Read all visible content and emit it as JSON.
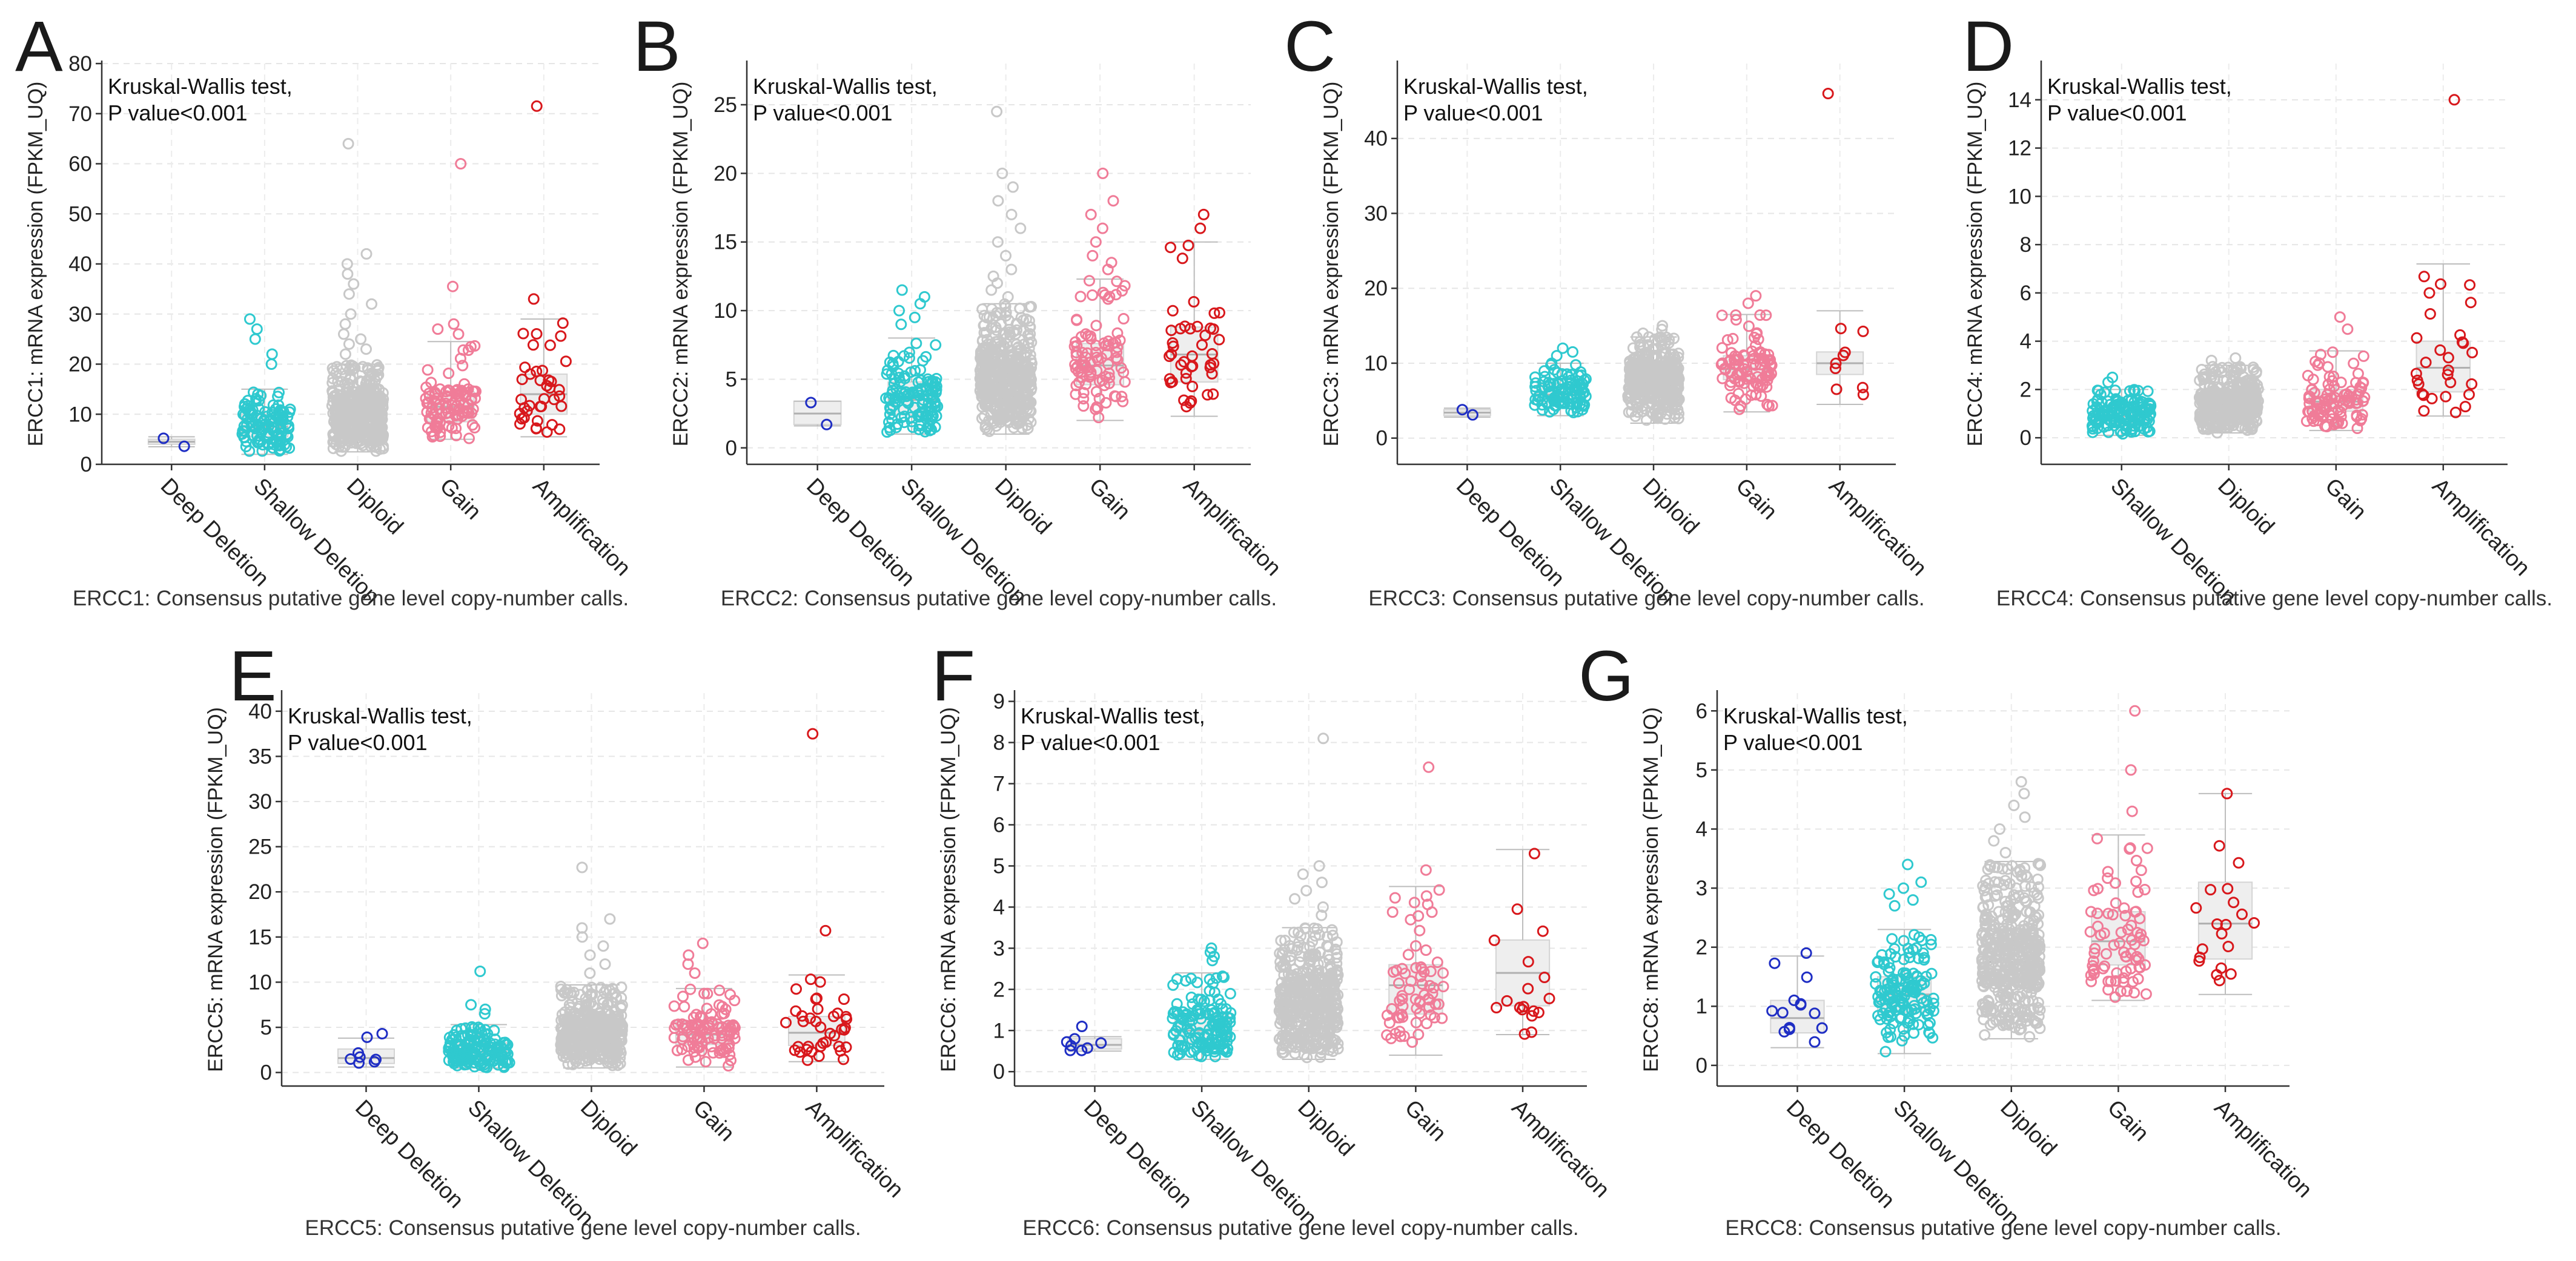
{
  "stats_line1": "Kruskal-Wallis test,",
  "stats_line2": "P value<0.001",
  "chart_data": [
    {
      "type": "boxplot_jitter",
      "letter": "A",
      "gene": "ERCC1",
      "ylabel": "ERCC1: mRNA expression (FPKM_UQ)",
      "xlabel": "ERCC1: Consensus putative gene level copy-number calls.",
      "ylim": [
        0,
        80
      ],
      "yticks": [
        0,
        10,
        20,
        30,
        40,
        50,
        60,
        70,
        80
      ],
      "categories": [
        "Deep Deletion",
        "Shallow Deletion",
        "Diploid",
        "Gain",
        "Amplification"
      ],
      "groups": [
        {
          "color": "#1f2ec4",
          "n": 2,
          "q1": 4,
          "median": 4.5,
          "q3": 5,
          "wlo": 3.5,
          "whi": 5.5,
          "outliers": [
            5.2,
            3.6
          ]
        },
        {
          "color": "#2fc9cf",
          "n": 120,
          "q1": 5.5,
          "median": 7.5,
          "q3": 10,
          "wlo": 2,
          "whi": 15,
          "outliers": [
            29,
            27,
            25,
            22,
            20
          ]
        },
        {
          "color": "#c8c8c8",
          "n": 420,
          "q1": 7.5,
          "median": 10,
          "q3": 13,
          "wlo": 2.5,
          "whi": 20,
          "outliers": [
            64,
            42,
            40,
            38,
            36,
            34,
            32,
            30,
            28,
            26,
            25,
            24,
            23,
            22
          ]
        },
        {
          "color": "#f07c98",
          "n": 100,
          "q1": 8.5,
          "median": 11.5,
          "q3": 14.5,
          "wlo": 5,
          "whi": 24.5,
          "outliers": [
            60,
            35.5,
            28,
            27,
            26
          ]
        },
        {
          "color": "#d8181c",
          "n": 40,
          "q1": 10,
          "median": 14,
          "q3": 18,
          "wlo": 5.5,
          "whi": 29,
          "outliers": [
            71.5,
            33
          ]
        }
      ]
    },
    {
      "type": "boxplot_jitter",
      "letter": "B",
      "gene": "ERCC2",
      "ylabel": "ERCC2: mRNA expression (FPKM_UQ)",
      "xlabel": "ERCC2: Consensus putative gene level copy-number calls.",
      "ylim": [
        -1.2,
        28
      ],
      "yticks": [
        0,
        5,
        10,
        15,
        20,
        25
      ],
      "categories": [
        "Deep Deletion",
        "Shallow Deletion",
        "Diploid",
        "Gain",
        "Amplification"
      ],
      "groups": [
        {
          "color": "#1f2ec4",
          "n": 2,
          "q1": 1.7,
          "median": 2.5,
          "q3": 3.4,
          "wlo": 1.6,
          "whi": 3.4,
          "outliers": [
            3.3,
            1.7
          ]
        },
        {
          "color": "#2fc9cf",
          "n": 130,
          "q1": 2.4,
          "median": 3.5,
          "q3": 4.8,
          "wlo": 1,
          "whi": 8,
          "outliers": [
            11.5,
            11,
            10.5,
            10,
            9.5,
            9
          ]
        },
        {
          "color": "#c8c8c8",
          "n": 460,
          "q1": 3.5,
          "median": 4.8,
          "q3": 6.4,
          "wlo": 1,
          "whi": 10.5,
          "outliers": [
            24.5,
            20,
            19,
            18,
            17,
            16,
            15,
            14,
            13,
            12.5,
            12,
            11.5,
            11
          ]
        },
        {
          "color": "#f07c98",
          "n": 100,
          "q1": 4.6,
          "median": 6,
          "q3": 7.6,
          "wlo": 2,
          "whi": 12.3,
          "outliers": [
            20,
            18,
            17,
            16,
            15,
            14,
            13.5,
            13
          ]
        },
        {
          "color": "#d8181c",
          "n": 45,
          "q1": 4.8,
          "median": 6.8,
          "q3": 8.8,
          "wlo": 2.3,
          "whi": 15,
          "outliers": [
            17,
            16
          ]
        }
      ]
    },
    {
      "type": "boxplot_jitter",
      "letter": "C",
      "gene": "ERCC3",
      "ylabel": "ERCC3: mRNA expression (FPKM_UQ)",
      "xlabel": "ERCC3: Consensus putative gene level copy-number calls.",
      "ylim": [
        -3.5,
        50
      ],
      "yticks": [
        0,
        10,
        20,
        30,
        40
      ],
      "categories": [
        "Deep Deletion",
        "Shallow Deletion",
        "Diploid",
        "Gain",
        "Amplification"
      ],
      "groups": [
        {
          "color": "#1f2ec4",
          "n": 2,
          "q1": 3,
          "median": 3.4,
          "q3": 3.8,
          "wlo": 2.8,
          "whi": 4,
          "outliers": [
            3.8,
            3.1
          ]
        },
        {
          "color": "#2fc9cf",
          "n": 100,
          "q1": 4.8,
          "median": 5.8,
          "q3": 7.2,
          "wlo": 3,
          "whi": 10,
          "outliers": [
            12,
            11.5,
            11
          ]
        },
        {
          "color": "#c8c8c8",
          "n": 440,
          "q1": 6.3,
          "median": 7.7,
          "q3": 9.3,
          "wlo": 2,
          "whi": 13.5,
          "outliers": [
            15,
            14.5,
            14
          ]
        },
        {
          "color": "#f07c98",
          "n": 100,
          "q1": 7.8,
          "median": 9.2,
          "q3": 11,
          "wlo": 3.5,
          "whi": 16.5,
          "outliers": [
            19,
            18
          ]
        },
        {
          "color": "#d8181c",
          "n": 10,
          "q1": 8.5,
          "median": 10,
          "q3": 11.5,
          "wlo": 4.5,
          "whi": 17,
          "outliers": [
            46
          ]
        }
      ]
    },
    {
      "type": "boxplot_jitter",
      "letter": "D",
      "gene": "ERCC4",
      "ylabel": "ERCC4: mRNA expression (FPKM_UQ)",
      "xlabel": "ERCC4: Consensus putative gene level copy-number calls.",
      "ylim": [
        -1.1,
        15.5
      ],
      "yticks": [
        0,
        2,
        4,
        6,
        8,
        10,
        12,
        14
      ],
      "categories": [
        "Shallow Deletion",
        "Diploid",
        "Gain",
        "Amplification"
      ],
      "groups": [
        {
          "color": "#2fc9cf",
          "n": 140,
          "q1": 0.6,
          "median": 0.9,
          "q3": 1.3,
          "wlo": 0.1,
          "whi": 2,
          "outliers": [
            2.5,
            2.3
          ]
        },
        {
          "color": "#c8c8c8",
          "n": 420,
          "q1": 1,
          "median": 1.4,
          "q3": 1.8,
          "wlo": 0.2,
          "whi": 3,
          "outliers": [
            3.3,
            3.2
          ]
        },
        {
          "color": "#f07c98",
          "n": 100,
          "q1": 1.1,
          "median": 1.5,
          "q3": 2,
          "wlo": 0.3,
          "whi": 3.6,
          "outliers": [
            5,
            4.5
          ]
        },
        {
          "color": "#d8181c",
          "n": 30,
          "q1": 1.9,
          "median": 2.9,
          "q3": 4,
          "wlo": 0.9,
          "whi": 7.2,
          "outliers": [
            14,
            6
          ]
        }
      ]
    },
    {
      "type": "boxplot_jitter",
      "letter": "E",
      "gene": "ERCC5",
      "ylabel": "ERCC5: mRNA expression (FPKM_UQ)",
      "xlabel": "ERCC5: Consensus putative gene level copy-number calls.",
      "ylim": [
        -1.5,
        42
      ],
      "yticks": [
        0,
        5,
        10,
        15,
        20,
        25,
        30,
        35,
        40
      ],
      "categories": [
        "Deep Deletion",
        "Shallow Deletion",
        "Diploid",
        "Gain",
        "Amplification"
      ],
      "groups": [
        {
          "color": "#1f2ec4",
          "n": 8,
          "q1": 1,
          "median": 1.6,
          "q3": 2.6,
          "wlo": 0.6,
          "whi": 3.8,
          "outliers": [
            4.3,
            3.9
          ]
        },
        {
          "color": "#2fc9cf",
          "n": 150,
          "q1": 1.6,
          "median": 2.3,
          "q3": 3.3,
          "wlo": 0.5,
          "whi": 5.3,
          "outliers": [
            11.2,
            7.5,
            7,
            6.5
          ]
        },
        {
          "color": "#c8c8c8",
          "n": 420,
          "q1": 3,
          "median": 4.2,
          "q3": 5.8,
          "wlo": 0.5,
          "whi": 9.7,
          "outliers": [
            22.7,
            17,
            16,
            15,
            14,
            13,
            12,
            11
          ]
        },
        {
          "color": "#f07c98",
          "n": 100,
          "q1": 3.1,
          "median": 4.2,
          "q3": 5.6,
          "wlo": 0.6,
          "whi": 9.3,
          "outliers": [
            14.3,
            13,
            12,
            11
          ]
        },
        {
          "color": "#d8181c",
          "n": 40,
          "q1": 3,
          "median": 4.4,
          "q3": 6.2,
          "wlo": 1.2,
          "whi": 10.8,
          "outliers": [
            37.5,
            15.7
          ]
        }
      ]
    },
    {
      "type": "boxplot_jitter",
      "letter": "F",
      "gene": "ERCC6",
      "ylabel": "ERCC6: mRNA expression (FPKM_UQ)",
      "xlabel": "ERCC6: Consensus putative gene level copy-number calls.",
      "ylim": [
        -0.35,
        9.2
      ],
      "yticks": [
        0,
        1,
        2,
        3,
        4,
        5,
        6,
        7,
        8,
        9
      ],
      "categories": [
        "Deep Deletion",
        "Shallow Deletion",
        "Diploid",
        "Gain",
        "Amplification"
      ],
      "groups": [
        {
          "color": "#1f2ec4",
          "n": 8,
          "q1": 0.55,
          "median": 0.65,
          "q3": 0.8,
          "wlo": 0.5,
          "whi": 0.85,
          "outliers": [
            1.1
          ]
        },
        {
          "color": "#2fc9cf",
          "n": 150,
          "q1": 0.7,
          "median": 1,
          "q3": 1.4,
          "wlo": 0.3,
          "whi": 2.4,
          "outliers": [
            3,
            2.9,
            2.8,
            2.7
          ]
        },
        {
          "color": "#c8c8c8",
          "n": 430,
          "q1": 1.2,
          "median": 1.6,
          "q3": 2.2,
          "wlo": 0.3,
          "whi": 3.5,
          "outliers": [
            8.1,
            5,
            4.8,
            4.6,
            4.4,
            4.2,
            4,
            3.8
          ]
        },
        {
          "color": "#f07c98",
          "n": 70,
          "q1": 1.4,
          "median": 2.1,
          "q3": 2.6,
          "wlo": 0.4,
          "whi": 4.5,
          "outliers": [
            7.4,
            4.9
          ]
        },
        {
          "color": "#d8181c",
          "n": 18,
          "q1": 1.6,
          "median": 2.4,
          "q3": 3.2,
          "wlo": 0.9,
          "whi": 5.4,
          "outliers": [
            5.3
          ]
        }
      ]
    },
    {
      "type": "boxplot_jitter",
      "letter": "G",
      "gene": "ERCC8",
      "ylabel": "ERCC8: mRNA expression (FPKM_UQ)",
      "xlabel": "ERCC8: Consensus putative gene level copy-number calls.",
      "ylim": [
        -0.35,
        6.3
      ],
      "yticks": [
        0,
        1,
        2,
        3,
        4,
        5,
        6
      ],
      "categories": [
        "Deep Deletion",
        "Shallow Deletion",
        "Diploid",
        "Gain",
        "Amplification"
      ],
      "groups": [
        {
          "color": "#1f2ec4",
          "n": 14,
          "q1": 0.55,
          "median": 0.8,
          "q3": 1.1,
          "wlo": 0.3,
          "whi": 1.85,
          "outliers": [
            1.9
          ]
        },
        {
          "color": "#2fc9cf",
          "n": 150,
          "q1": 0.9,
          "median": 1.2,
          "q3": 1.5,
          "wlo": 0.2,
          "whi": 2.3,
          "outliers": [
            3.4,
            3.1,
            3,
            2.9,
            2.8,
            2.7
          ]
        },
        {
          "color": "#c8c8c8",
          "n": 440,
          "q1": 1.4,
          "median": 1.75,
          "q3": 2.2,
          "wlo": 0.45,
          "whi": 3.45,
          "outliers": [
            4.8,
            4.6,
            4.4,
            4.2,
            4,
            3.8,
            3.6
          ]
        },
        {
          "color": "#f07c98",
          "n": 80,
          "q1": 1.7,
          "median": 2.1,
          "q3": 2.6,
          "wlo": 1.1,
          "whi": 3.9,
          "outliers": [
            6,
            5,
            4.3
          ]
        },
        {
          "color": "#d8181c",
          "n": 20,
          "q1": 1.8,
          "median": 2.4,
          "q3": 3.1,
          "wlo": 1.2,
          "whi": 4.6,
          "outliers": [
            4.6
          ]
        }
      ]
    }
  ]
}
